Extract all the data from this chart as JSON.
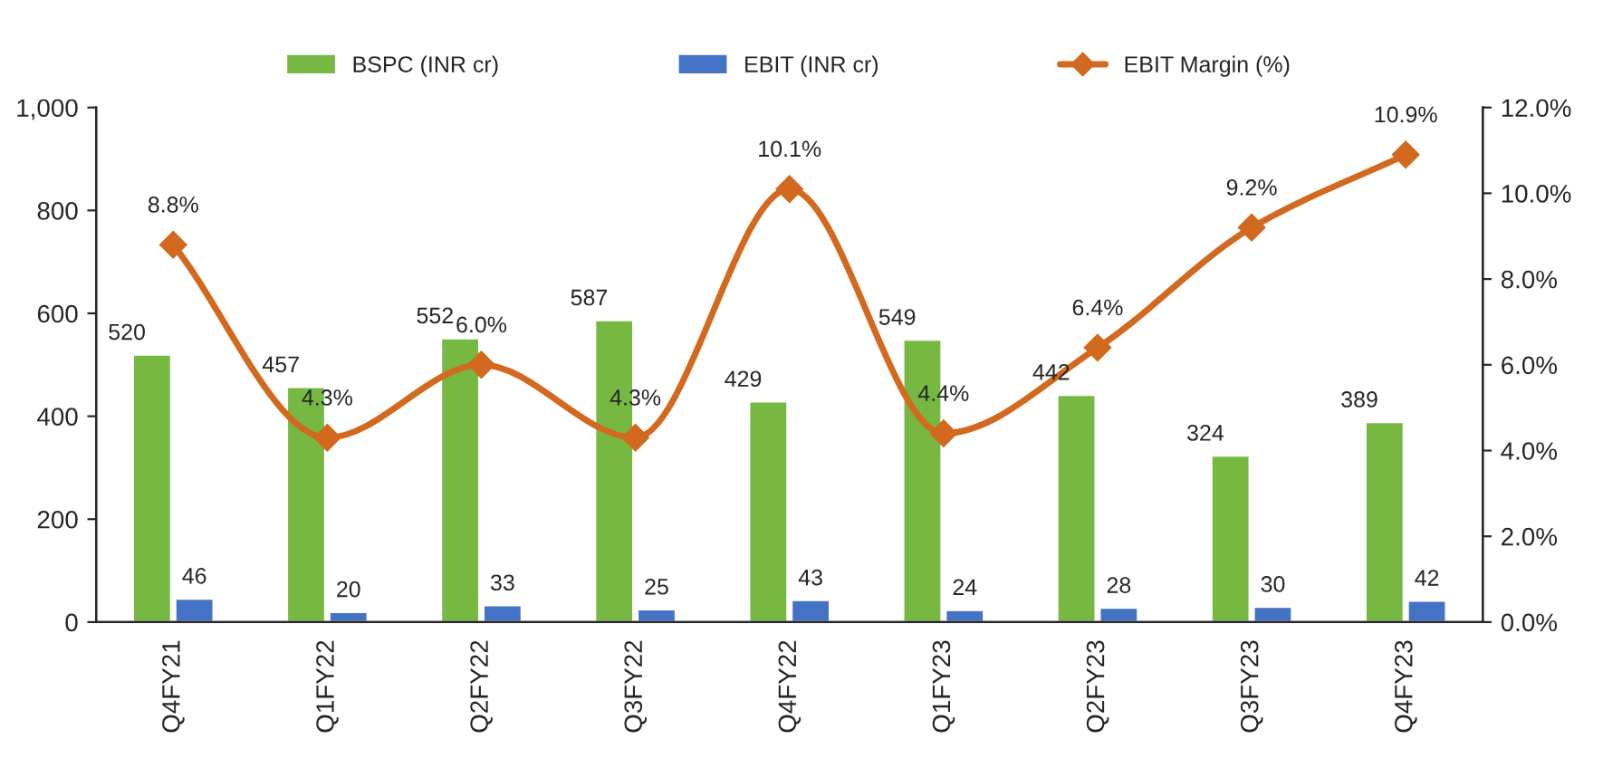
{
  "chart_data": {
    "type": "bar",
    "categories": [
      "Q4FY21",
      "Q1FY22",
      "Q2FY22",
      "Q3FY22",
      "Q4FY22",
      "Q1FY23",
      "Q2FY23",
      "Q3FY23",
      "Q4FY23"
    ],
    "series": [
      {
        "name": "BSPC (INR cr)",
        "color": "#77b843",
        "values": [
          520,
          457,
          552,
          587,
          429,
          549,
          442,
          324,
          389
        ],
        "value_labels": [
          "520",
          "457",
          "552",
          "587",
          "429",
          "549",
          "442",
          "324",
          "389"
        ]
      },
      {
        "name": "EBIT (INR cr)",
        "color": "#4472c4",
        "values": [
          46,
          20,
          33,
          25,
          43,
          24,
          28,
          30,
          42
        ],
        "value_labels": [
          "46",
          "20",
          "33",
          "25",
          "43",
          "24",
          "28",
          "30",
          "42"
        ]
      },
      {
        "name": "EBIT Margin (%)",
        "type": "line",
        "axis": "y2",
        "color": "#d2691e",
        "marker": "diamond",
        "line_style": "solid",
        "values": [
          8.8,
          4.3,
          6.0,
          4.3,
          10.1,
          4.4,
          6.4,
          9.2,
          10.9
        ],
        "value_labels": [
          "8.8%",
          "4.3%",
          "6.0%",
          "4.3%",
          "10.1%",
          "4.4%",
          "6.4%",
          "9.2%",
          "10.9%"
        ]
      }
    ],
    "ylim": [
      0,
      1000
    ],
    "yticks": [
      0,
      200,
      400,
      600,
      800,
      {
        "value": 1000,
        "label": "1,000"
      }
    ],
    "y2lim": [
      0,
      12
    ],
    "y2ticks": [
      {
        "value": 0,
        "label": "0.0%"
      },
      {
        "value": 2,
        "label": "2.0%"
      },
      {
        "value": 4,
        "label": "4.0%"
      },
      {
        "value": 6,
        "label": "6.0%"
      },
      {
        "value": 8,
        "label": "8.0%"
      },
      {
        "value": 10,
        "label": "10.0%"
      },
      {
        "value": 12,
        "label": "12.0%"
      }
    ],
    "grid": false,
    "legend": "top"
  }
}
